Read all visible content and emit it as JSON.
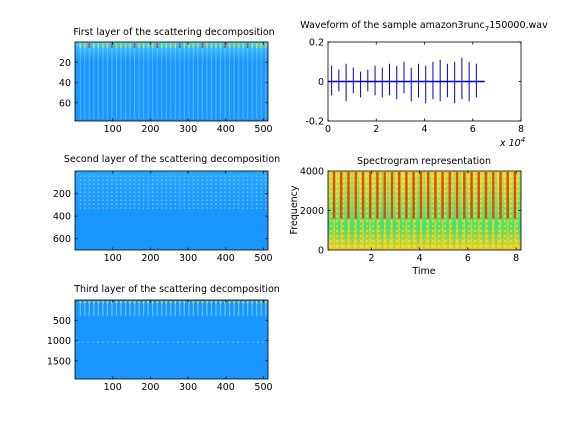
{
  "colors": {
    "map_background": "#1a96ff",
    "map_light": "#8ad7ff",
    "map_cyan": "#44ccff",
    "map_yellow": "#ffd800",
    "map_red": "#e83010",
    "waveform_line": "#0000cc",
    "spec_green": "#48e048"
  },
  "chart_data": [
    {
      "id": "first-layer",
      "type": "heatmap",
      "title": "First layer of the scattering decomposition",
      "xlabel": "",
      "ylabel": "",
      "xlim": [
        0,
        512
      ],
      "ylim": [
        78,
        0
      ],
      "y_reversed": true,
      "xticks": [
        100,
        200,
        300,
        400,
        500
      ],
      "xtick_labels": [
        "100",
        "200",
        "300",
        "400",
        "500"
      ],
      "yticks": [
        20,
        40,
        60
      ],
      "ytick_labels": [
        "20",
        "40",
        "60"
      ],
      "colormap": "jet",
      "stripe_x": [
        14,
        26,
        38,
        50,
        62,
        74,
        86,
        98,
        110,
        122,
        134,
        146,
        158,
        170,
        182,
        194,
        206,
        218,
        230,
        242,
        254,
        266,
        278,
        290,
        302,
        314,
        326,
        338,
        350,
        362,
        374,
        386,
        398,
        410,
        422,
        434,
        446,
        458,
        470,
        482,
        494,
        506
      ],
      "band_rows": [
        0,
        5
      ]
    },
    {
      "id": "second-layer",
      "type": "heatmap",
      "title": "Second layer of the scattering decomposition",
      "xlabel": "",
      "ylabel": "",
      "xlim": [
        0,
        512
      ],
      "ylim": [
        700,
        0
      ],
      "y_reversed": true,
      "xticks": [
        100,
        200,
        300,
        400,
        500
      ],
      "xtick_labels": [
        "100",
        "200",
        "300",
        "400",
        "500"
      ],
      "yticks": [
        200,
        400,
        600
      ],
      "ytick_labels": [
        "200",
        "400",
        "600"
      ],
      "colormap": "jet",
      "stripe_x": [
        14,
        26,
        38,
        50,
        62,
        74,
        86,
        98,
        110,
        122,
        134,
        146,
        158,
        170,
        182,
        194,
        206,
        218,
        230,
        242,
        254,
        266,
        278,
        290,
        302,
        314,
        326,
        338,
        350,
        362,
        374,
        386,
        398,
        410,
        422,
        434,
        446,
        458,
        470,
        482,
        494,
        506
      ],
      "band_rows": [
        40,
        340
      ]
    },
    {
      "id": "third-layer",
      "type": "heatmap",
      "title": "Third layer of the scattering decomposition",
      "xlabel": "",
      "ylabel": "",
      "xlim": [
        0,
        512
      ],
      "ylim": [
        1950,
        0
      ],
      "y_reversed": true,
      "xticks": [
        100,
        200,
        300,
        400,
        500
      ],
      "xtick_labels": [
        "100",
        "200",
        "300",
        "400",
        "500"
      ],
      "yticks": [
        500,
        1000,
        1500
      ],
      "ytick_labels": [
        "500",
        "1000",
        "1500"
      ],
      "colormap": "jet",
      "stripe_x": [
        14,
        26,
        38,
        50,
        62,
        74,
        86,
        98,
        110,
        122,
        134,
        146,
        158,
        170,
        182,
        194,
        206,
        218,
        230,
        242,
        254,
        266,
        278,
        290,
        302,
        314,
        326,
        338,
        350,
        362,
        374,
        386,
        398,
        410,
        422,
        434,
        446,
        458,
        470,
        482,
        494,
        506
      ],
      "band_rows": [
        30,
        390
      ],
      "mid_band": 1040
    },
    {
      "id": "waveform",
      "type": "line",
      "title": "Waveform of the sample amazon3runc_7150000.wav",
      "title_main": "Waveform of the sample amazon3runc",
      "title_sub": "7",
      "title_tail": "150000.wav",
      "xlabel": "",
      "ylabel": "",
      "xlim": [
        0,
        80000
      ],
      "ylim": [
        -0.2,
        0.2
      ],
      "xticks": [
        0,
        20000,
        40000,
        60000,
        80000
      ],
      "xtick_labels": [
        "0",
        "2",
        "4",
        "6",
        "8"
      ],
      "yticks": [
        -0.2,
        0,
        0.2
      ],
      "ytick_labels": [
        "-0.2",
        "0",
        "0.2"
      ],
      "x_exponent_base": "x 10",
      "x_exponent_power": "4",
      "signal_end": 65000,
      "spike_x": [
        1500,
        4500,
        7500,
        10500,
        13500,
        16500,
        19500,
        22500,
        25500,
        28500,
        31500,
        34500,
        37500,
        40500,
        43500,
        46500,
        49500,
        52500,
        55500,
        58500,
        61500
      ],
      "spike_top": [
        0.08,
        0.06,
        0.09,
        0.07,
        0.05,
        0.06,
        0.08,
        0.07,
        0.09,
        0.08,
        0.1,
        0.07,
        0.09,
        0.08,
        0.1,
        0.11,
        0.09,
        0.1,
        0.12,
        0.1,
        0.09
      ],
      "spike_bottom": [
        -0.07,
        -0.05,
        -0.1,
        -0.06,
        -0.08,
        -0.05,
        -0.07,
        -0.08,
        -0.07,
        -0.09,
        -0.06,
        -0.1,
        -0.08,
        -0.11,
        -0.09,
        -0.1,
        -0.08,
        -0.11,
        -0.09,
        -0.1,
        -0.08
      ]
    },
    {
      "id": "spectrogram",
      "type": "heatmap",
      "title": "Spectrogram representation",
      "xlabel": "Time",
      "ylabel": "Frequency",
      "xlim": [
        0.2,
        8.2
      ],
      "ylim": [
        0,
        4000
      ],
      "xticks": [
        2,
        4,
        6,
        8
      ],
      "xtick_labels": [
        "2",
        "4",
        "6",
        "8"
      ],
      "yticks": [
        0,
        2000,
        4000
      ],
      "ytick_labels": [
        "0",
        "2000",
        "4000"
      ],
      "colormap": "jet",
      "onset_times": [
        0.45,
        0.75,
        1.05,
        1.35,
        1.65,
        1.95,
        2.25,
        2.55,
        2.85,
        3.15,
        3.45,
        3.75,
        4.05,
        4.35,
        4.65,
        4.95,
        5.25,
        5.55,
        5.85,
        6.15,
        6.45,
        6.75,
        7.05,
        7.35,
        7.65,
        7.95
      ]
    }
  ]
}
